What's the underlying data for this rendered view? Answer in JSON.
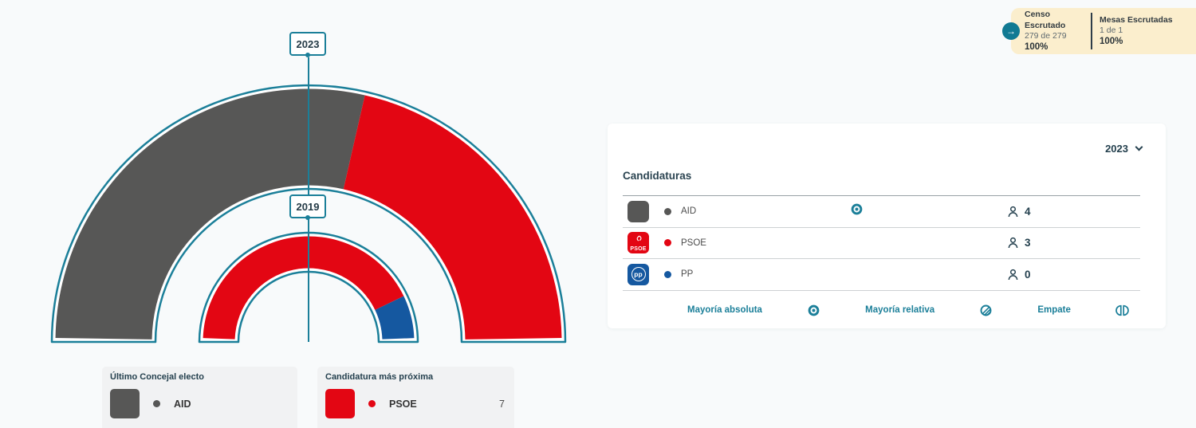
{
  "icons": {
    "expand_arrow": "→"
  },
  "scrutiny": {
    "censo_label": "Censo Escrutado",
    "censo_value": "279 de 279",
    "censo_percent": "100%",
    "mesas_label": "Mesas Escrutadas",
    "mesas_value": "1 de 1",
    "mesas_percent": "100%"
  },
  "timeline": {
    "year_outer": "2023",
    "year_inner": "2019"
  },
  "chart_data": {
    "type": "pie",
    "subtype": "half-donut-seat-arcs",
    "outline_color": "#1b7f99",
    "rings": [
      {
        "year": "2023",
        "total_seats": 7,
        "series": [
          {
            "name": "AID",
            "seats": 4,
            "color": "#575756"
          },
          {
            "name": "PSOE",
            "seats": 3,
            "color": "#e30613"
          }
        ]
      },
      {
        "year": "2019",
        "total_seats": 7,
        "series": [
          {
            "name": "PSOE",
            "seats": 6,
            "color": "#e30613"
          },
          {
            "name": "PP",
            "seats": 1,
            "color": "#1558a0"
          }
        ]
      }
    ]
  },
  "panel": {
    "year_selected": "2023",
    "title": "Candidaturas",
    "rows": [
      {
        "party": "AID",
        "logo_text": "",
        "seats": "4",
        "color": "#575756",
        "majority": "absoluta"
      },
      {
        "party": "PSOE",
        "logo_text": "PSOE",
        "seats": "3",
        "color": "#e30613",
        "majority": ""
      },
      {
        "party": "PP",
        "logo_text": "pp",
        "seats": "0",
        "color": "#1558a0",
        "majority": ""
      }
    ],
    "legend": {
      "absolute": "Mayoría absoluta",
      "relative": "Mayoría relativa",
      "tie": "Empate"
    }
  },
  "cards": {
    "last_councillor": {
      "title": "Último Concejal electo",
      "party": "AID",
      "color": "#575756",
      "value": ""
    },
    "closest_candidacy": {
      "title": "Candidatura más próxima",
      "party": "PSOE",
      "color": "#e30613",
      "value": "7"
    }
  },
  "colors": {
    "accent_teal": "#1b7f99",
    "navy": "#24404e",
    "tooltip_bg": "#fbeecd",
    "card_bg": "#f1f2f3",
    "page_bg": "#f8fafb"
  }
}
